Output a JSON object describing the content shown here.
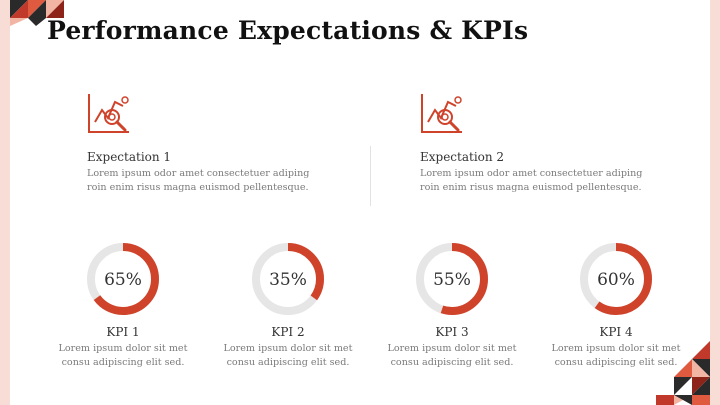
{
  "slide": {
    "title": "Performance Expectations & KPIs"
  },
  "colors": {
    "accent": "#d0432b",
    "accent_dark": "#8e2419",
    "track": "#e6e6e6",
    "deco_dark": "#2a2a2a",
    "deco_light": "#f2b5a4",
    "side_band": "#f8ddd6"
  },
  "expectations": [
    {
      "icon": "chart-magnifier-icon",
      "title": "Expectation 1",
      "line1": "Lorem ipsum odor amet consectetuer adiping",
      "line2": "roin enim risus magna euismod pellentesque."
    },
    {
      "icon": "chart-magnifier-icon",
      "title": "Expectation 2",
      "line1": "Lorem ipsum odor amet consectetuer adiping",
      "line2": "roin enim risus magna euismod pellentesque."
    }
  ],
  "kpis": [
    {
      "label": "KPI 1",
      "value": 65,
      "value_label": "65%",
      "line1": "Lorem ipsum dolor sit met",
      "line2": "consu adipiscing elit sed."
    },
    {
      "label": "KPI 2",
      "value": 35,
      "value_label": "35%",
      "line1": "Lorem ipsum dolor sit met",
      "line2": "consu adipiscing elit sed."
    },
    {
      "label": "KPI 3",
      "value": 55,
      "value_label": "55%",
      "line1": "Lorem ipsum dolor sit met",
      "line2": "consu adipiscing elit sed."
    },
    {
      "label": "KPI 4",
      "value": 60,
      "value_label": "60%",
      "line1": "Lorem ipsum dolor sit met",
      "line2": "consu adipiscing elit sed."
    }
  ]
}
